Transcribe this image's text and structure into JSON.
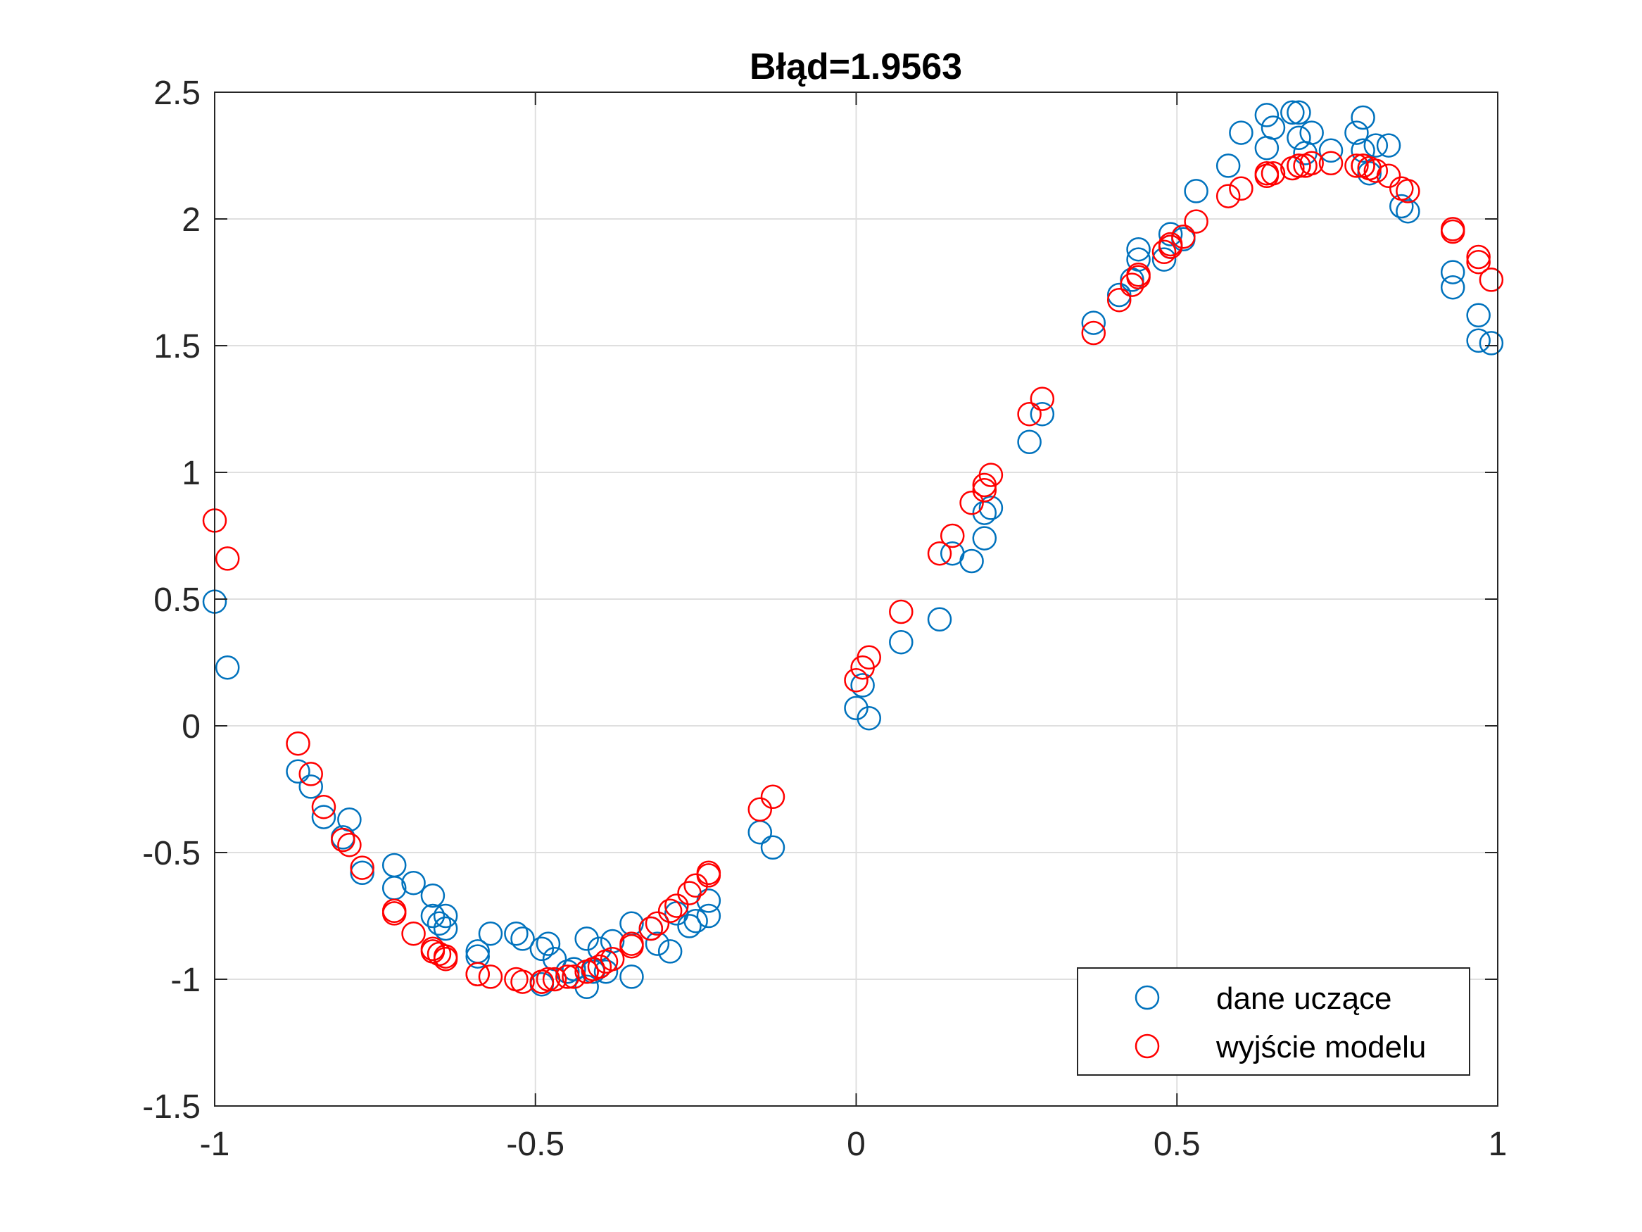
{
  "chart_data": {
    "type": "scatter",
    "title": "Błąd=1.9563",
    "xlabel": "",
    "ylabel": "",
    "xlim": [
      -1,
      1
    ],
    "ylim": [
      -1.5,
      2.5
    ],
    "xticks": [
      -1,
      -0.5,
      0,
      0.5,
      1
    ],
    "xtick_labels": [
      "-1",
      "-0.5",
      "0",
      "0.5",
      "1"
    ],
    "yticks": [
      -1.5,
      -1,
      -0.5,
      0,
      0.5,
      1,
      1.5,
      2,
      2.5
    ],
    "ytick_labels": [
      "-1.5",
      "-1",
      "-0.5",
      "0",
      "0.5",
      "1",
      "1.5",
      "2",
      "2.5"
    ],
    "grid": true,
    "legend_position": "bottom-right",
    "series": [
      {
        "name": "dane uczące",
        "color": "#0072BD",
        "marker": "circle-open",
        "points": [
          [
            -1.0,
            0.49
          ],
          [
            -0.98,
            0.23
          ],
          [
            -0.87,
            -0.18
          ],
          [
            -0.85,
            -0.24
          ],
          [
            -0.83,
            -0.36
          ],
          [
            -0.8,
            -0.44
          ],
          [
            -0.79,
            -0.37
          ],
          [
            -0.77,
            -0.58
          ],
          [
            -0.72,
            -0.55
          ],
          [
            -0.72,
            -0.64
          ],
          [
            -0.69,
            -0.62
          ],
          [
            -0.66,
            -0.67
          ],
          [
            -0.66,
            -0.75
          ],
          [
            -0.65,
            -0.78
          ],
          [
            -0.64,
            -0.8
          ],
          [
            -0.64,
            -0.75
          ],
          [
            -0.59,
            -0.89
          ],
          [
            -0.59,
            -0.91
          ],
          [
            -0.57,
            -0.82
          ],
          [
            -0.53,
            -0.82
          ],
          [
            -0.52,
            -0.84
          ],
          [
            -0.49,
            -0.88
          ],
          [
            -0.49,
            -1.02
          ],
          [
            -0.48,
            -0.86
          ],
          [
            -0.47,
            -0.92
          ],
          [
            -0.45,
            -0.97
          ],
          [
            -0.44,
            -0.96
          ],
          [
            -0.42,
            -1.03
          ],
          [
            -0.42,
            -0.84
          ],
          [
            -0.41,
            -0.97
          ],
          [
            -0.4,
            -0.88
          ],
          [
            -0.39,
            -0.97
          ],
          [
            -0.38,
            -0.85
          ],
          [
            -0.35,
            -0.78
          ],
          [
            -0.35,
            -0.99
          ],
          [
            -0.32,
            -0.8
          ],
          [
            -0.31,
            -0.86
          ],
          [
            -0.29,
            -0.89
          ],
          [
            -0.28,
            -0.74
          ],
          [
            -0.26,
            -0.79
          ],
          [
            -0.25,
            -0.77
          ],
          [
            -0.23,
            -0.69
          ],
          [
            -0.23,
            -0.75
          ],
          [
            -0.15,
            -0.42
          ],
          [
            -0.13,
            -0.48
          ],
          [
            0.0,
            0.07
          ],
          [
            0.01,
            0.16
          ],
          [
            0.02,
            0.03
          ],
          [
            0.07,
            0.33
          ],
          [
            0.13,
            0.42
          ],
          [
            0.15,
            0.68
          ],
          [
            0.18,
            0.65
          ],
          [
            0.2,
            0.84
          ],
          [
            0.2,
            0.74
          ],
          [
            0.21,
            0.86
          ],
          [
            0.27,
            1.12
          ],
          [
            0.29,
            1.23
          ],
          [
            0.37,
            1.59
          ],
          [
            0.41,
            1.7
          ],
          [
            0.43,
            1.76
          ],
          [
            0.44,
            1.84
          ],
          [
            0.44,
            1.88
          ],
          [
            0.48,
            1.84
          ],
          [
            0.49,
            1.89
          ],
          [
            0.49,
            1.94
          ],
          [
            0.51,
            1.92
          ],
          [
            0.53,
            2.11
          ],
          [
            0.58,
            2.21
          ],
          [
            0.6,
            2.34
          ],
          [
            0.64,
            2.28
          ],
          [
            0.64,
            2.41
          ],
          [
            0.65,
            2.36
          ],
          [
            0.68,
            2.42
          ],
          [
            0.69,
            2.42
          ],
          [
            0.69,
            2.32
          ],
          [
            0.7,
            2.26
          ],
          [
            0.71,
            2.34
          ],
          [
            0.74,
            2.27
          ],
          [
            0.78,
            2.34
          ],
          [
            0.79,
            2.4
          ],
          [
            0.79,
            2.27
          ],
          [
            0.8,
            2.18
          ],
          [
            0.81,
            2.29
          ],
          [
            0.83,
            2.29
          ],
          [
            0.85,
            2.05
          ],
          [
            0.86,
            2.03
          ],
          [
            0.93,
            1.79
          ],
          [
            0.93,
            1.73
          ],
          [
            0.97,
            1.62
          ],
          [
            0.97,
            1.52
          ],
          [
            0.99,
            1.51
          ]
        ]
      },
      {
        "name": "wyjście modelu",
        "color": "#FF0000",
        "marker": "circle-open",
        "points": [
          [
            -1.0,
            0.81
          ],
          [
            -0.98,
            0.66
          ],
          [
            -0.87,
            -0.07
          ],
          [
            -0.85,
            -0.19
          ],
          [
            -0.83,
            -0.32
          ],
          [
            -0.8,
            -0.45
          ],
          [
            -0.79,
            -0.47
          ],
          [
            -0.77,
            -0.56
          ],
          [
            -0.72,
            -0.73
          ],
          [
            -0.72,
            -0.74
          ],
          [
            -0.69,
            -0.82
          ],
          [
            -0.66,
            -0.88
          ],
          [
            -0.66,
            -0.89
          ],
          [
            -0.65,
            -0.9
          ],
          [
            -0.64,
            -0.91
          ],
          [
            -0.64,
            -0.92
          ],
          [
            -0.59,
            -0.98
          ],
          [
            -0.59,
            -0.98
          ],
          [
            -0.57,
            -0.99
          ],
          [
            -0.53,
            -1.0
          ],
          [
            -0.52,
            -1.01
          ],
          [
            -0.49,
            -1.01
          ],
          [
            -0.49,
            -1.01
          ],
          [
            -0.48,
            -1.0
          ],
          [
            -0.47,
            -1.0
          ],
          [
            -0.45,
            -0.99
          ],
          [
            -0.44,
            -0.99
          ],
          [
            -0.42,
            -0.97
          ],
          [
            -0.42,
            -0.97
          ],
          [
            -0.41,
            -0.96
          ],
          [
            -0.4,
            -0.95
          ],
          [
            -0.39,
            -0.93
          ],
          [
            -0.38,
            -0.92
          ],
          [
            -0.35,
            -0.87
          ],
          [
            -0.35,
            -0.86
          ],
          [
            -0.32,
            -0.8
          ],
          [
            -0.31,
            -0.78
          ],
          [
            -0.29,
            -0.73
          ],
          [
            -0.28,
            -0.71
          ],
          [
            -0.26,
            -0.66
          ],
          [
            -0.25,
            -0.63
          ],
          [
            -0.23,
            -0.59
          ],
          [
            -0.23,
            -0.58
          ],
          [
            -0.15,
            -0.33
          ],
          [
            -0.13,
            -0.28
          ],
          [
            0.0,
            0.18
          ],
          [
            0.01,
            0.23
          ],
          [
            0.02,
            0.27
          ],
          [
            0.07,
            0.45
          ],
          [
            0.13,
            0.68
          ],
          [
            0.15,
            0.75
          ],
          [
            0.18,
            0.88
          ],
          [
            0.2,
            0.93
          ],
          [
            0.2,
            0.95
          ],
          [
            0.21,
            0.99
          ],
          [
            0.27,
            1.23
          ],
          [
            0.29,
            1.29
          ],
          [
            0.37,
            1.55
          ],
          [
            0.41,
            1.68
          ],
          [
            0.43,
            1.74
          ],
          [
            0.44,
            1.77
          ],
          [
            0.44,
            1.78
          ],
          [
            0.48,
            1.87
          ],
          [
            0.49,
            1.89
          ],
          [
            0.49,
            1.9
          ],
          [
            0.51,
            1.93
          ],
          [
            0.53,
            1.99
          ],
          [
            0.58,
            2.09
          ],
          [
            0.6,
            2.12
          ],
          [
            0.64,
            2.17
          ],
          [
            0.64,
            2.18
          ],
          [
            0.65,
            2.18
          ],
          [
            0.68,
            2.2
          ],
          [
            0.69,
            2.21
          ],
          [
            0.69,
            2.21
          ],
          [
            0.7,
            2.21
          ],
          [
            0.71,
            2.22
          ],
          [
            0.74,
            2.22
          ],
          [
            0.78,
            2.21
          ],
          [
            0.79,
            2.21
          ],
          [
            0.79,
            2.21
          ],
          [
            0.8,
            2.2
          ],
          [
            0.81,
            2.19
          ],
          [
            0.83,
            2.17
          ],
          [
            0.85,
            2.12
          ],
          [
            0.86,
            2.11
          ],
          [
            0.93,
            1.96
          ],
          [
            0.93,
            1.95
          ],
          [
            0.97,
            1.85
          ],
          [
            0.97,
            1.83
          ],
          [
            0.99,
            1.76
          ]
        ]
      }
    ]
  }
}
